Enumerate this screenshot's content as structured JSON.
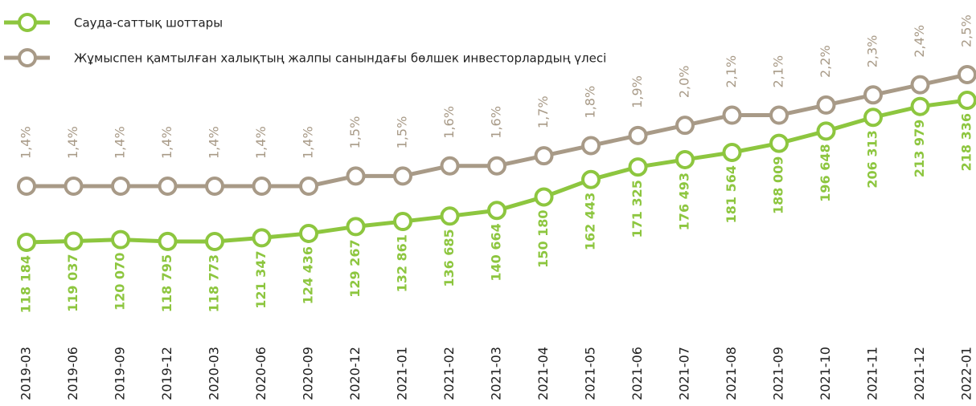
{
  "chart_data": {
    "type": "line",
    "categories": [
      "2019-03",
      "2019-06",
      "2019-09",
      "2019-12",
      "2020-03",
      "2020-06",
      "2020-09",
      "2020-12",
      "2021-01",
      "2021-02",
      "2021-03",
      "2021-04",
      "2021-05",
      "2021-06",
      "2021-07",
      "2021-08",
      "2021-09",
      "2021-10",
      "2021-11",
      "2021-12",
      "2022-01"
    ],
    "series": [
      {
        "name": "Сауда-саттық шоттары",
        "color": "#8dc63f",
        "values": [
          118184,
          119037,
          120070,
          118795,
          118773,
          121347,
          124436,
          129267,
          132861,
          136685,
          140664,
          150180,
          162443,
          171325,
          176493,
          181564,
          188009,
          196648,
          206313,
          213979,
          218336
        ],
        "value_labels": [
          "118 184",
          "119 037",
          "120 070",
          "118 795",
          "118 773",
          "121 347",
          "124 436",
          "129 267",
          "132 861",
          "136 685",
          "140 664",
          "150 180",
          "162 443",
          "171 325",
          "176 493",
          "181 564",
          "188 009",
          "196 648",
          "206 313",
          "213 979",
          "218 336"
        ]
      },
      {
        "name": "Жұмыспен қамтылған халықтың жалпы санындағы бөлшек инвесторлардың үлесі",
        "color": "#a89a87",
        "axis": "y2",
        "values": [
          1.4,
          1.4,
          1.4,
          1.4,
          1.4,
          1.4,
          1.4,
          1.5,
          1.5,
          1.6,
          1.6,
          1.7,
          1.8,
          1.9,
          2.0,
          2.1,
          2.1,
          2.2,
          2.3,
          2.4,
          2.5
        ],
        "value_labels": [
          "1,4%",
          "1,4%",
          "1,4%",
          "1,4%",
          "1,4%",
          "1,4%",
          "1,4%",
          "1,5%",
          "1,5%",
          "1,6%",
          "1,6%",
          "1,7%",
          "1,8%",
          "1,9%",
          "2,0%",
          "2,1%",
          "2,1%",
          "2,2%",
          "2,3%",
          "2,4%",
          "2,5%"
        ]
      }
    ]
  }
}
